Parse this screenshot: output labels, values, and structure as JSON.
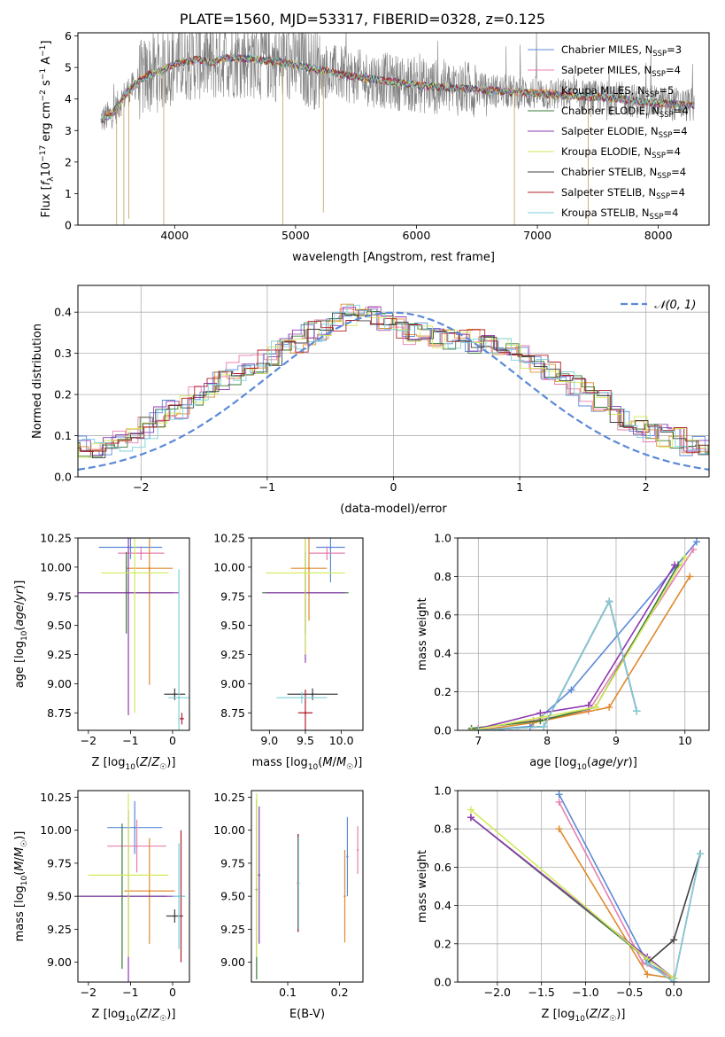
{
  "figure": {
    "title": "PLATE=1560, MJD=53317, FIBERID=0328, z=0.125"
  },
  "colors": {
    "Chabrier MILES": "#5b8ad8",
    "Salpeter MILES": "#e77fb0",
    "Kroupa MILES": "#e08a2e",
    "Chabrier ELODIE": "#3a7a3a",
    "Salpeter ELODIE": "#8e3ab0",
    "Kroupa ELODIE": "#d2ea5a",
    "Chabrier STELIB": "#404040",
    "Salpeter STELIB": "#b0202a",
    "Kroupa STELIB": "#7ad0dc",
    "observed": "#808080",
    "normal": "#5b8ad8"
  },
  "chart_data": [
    {
      "id": "spectrum",
      "type": "line",
      "xlabel": "wavelength [Angstrom, rest frame]",
      "ylabel": "Flux [f_λ 10^-17 erg cm^-2 s^-1 A^-1]",
      "xlim": [
        3200,
        8420
      ],
      "ylim": [
        0,
        6.1
      ],
      "xticks": [
        4000,
        5000,
        6000,
        7000,
        8000
      ],
      "yticks": [
        0,
        1,
        2,
        3,
        4,
        5,
        6
      ],
      "legend_position": "top-right",
      "legend": [
        "Chabrier MILES, N_SSP=3",
        "Salpeter MILES, N_SSP=4",
        "Kroupa MILES, N_SSP=5",
        "Chabrier ELODIE, N_SSP=4",
        "Salpeter ELODIE, N_SSP=4",
        "Kroupa ELODIE, N_SSP=4",
        "Chabrier STELIB, N_SSP=4",
        "Salpeter STELIB, N_SSP=4",
        "Kroupa STELIB, N_SSP=4"
      ],
      "model_continuum": {
        "x": [
          3390,
          3450,
          3500,
          3550,
          3600,
          3650,
          3700,
          3800,
          3900,
          4000,
          4100,
          4200,
          4300,
          4400,
          4500,
          4700,
          4900,
          5100,
          5300,
          5500,
          5700,
          5900,
          6100,
          6300,
          6500,
          6700,
          6900,
          7100,
          7300,
          7500,
          7700,
          7900,
          8100,
          8300
        ],
        "y": [
          3.35,
          3.45,
          3.6,
          3.9,
          4.2,
          4.35,
          4.55,
          4.8,
          4.9,
          5.1,
          5.2,
          5.25,
          5.15,
          5.3,
          5.3,
          5.25,
          5.15,
          5.0,
          4.85,
          4.7,
          4.6,
          4.5,
          4.4,
          4.35,
          4.3,
          4.25,
          4.2,
          4.15,
          4.1,
          4.05,
          4.0,
          3.9,
          3.85,
          3.8
        ]
      }
    },
    {
      "id": "residuals",
      "type": "line",
      "xlabel": "(data-model)/error",
      "ylabel": "Normed distribution",
      "xlim": [
        -2.5,
        2.5
      ],
      "ylim": [
        0,
        0.465
      ],
      "xticks": [
        -2,
        -1,
        0,
        1,
        2
      ],
      "yticks": [
        0.0,
        0.1,
        0.2,
        0.3,
        0.4
      ],
      "legend": [
        "𝒩(0, 1)"
      ],
      "grid": true,
      "histogram_bin_width": 0.1,
      "histogram_mean": [
        0.03,
        0.04,
        0.05,
        0.06,
        0.06,
        0.07,
        0.07,
        0.08,
        0.09,
        0.1,
        0.12,
        0.14,
        0.16,
        0.17,
        0.19,
        0.21,
        0.23,
        0.25,
        0.27,
        0.28,
        0.3,
        0.32,
        0.33,
        0.35,
        0.36,
        0.38,
        0.39,
        0.4,
        0.39,
        0.37,
        0.36,
        0.35,
        0.35,
        0.34,
        0.34,
        0.33,
        0.33,
        0.32,
        0.31,
        0.3,
        0.29,
        0.28,
        0.26,
        0.24,
        0.22,
        0.2,
        0.18,
        0.16,
        0.14,
        0.12,
        0.11,
        0.1,
        0.09,
        0.08,
        0.07,
        0.06,
        0.05,
        0.05,
        0.04,
        0.04
      ]
    },
    {
      "id": "age_vs_Z",
      "type": "scatter",
      "xlabel": "Z [log10(Z/Z☉)]",
      "ylabel": "age  [log10(age/yr)]",
      "xlim": [
        -2.25,
        0.4
      ],
      "ylim": [
        8.6,
        10.25
      ],
      "xticks": [
        -2,
        -1,
        0
      ],
      "yticks": [
        8.75,
        9.0,
        9.25,
        9.5,
        9.75,
        10.0,
        10.25
      ],
      "points": [
        {
          "model": "Chabrier MILES",
          "x": -1.0,
          "y": 10.17,
          "xerr": 0.75,
          "yerr": 0.1
        },
        {
          "model": "Salpeter MILES",
          "x": -0.75,
          "y": 10.12,
          "xerr": 0.55,
          "yerr": 0.06
        },
        {
          "model": "Kroupa MILES",
          "x": -0.55,
          "y": 9.99,
          "xerr": 0.55,
          "yerr": 1.0
        },
        {
          "model": "Chabrier ELODIE",
          "x": -1.1,
          "y": 9.78,
          "xerr": 1.1,
          "yerr": 0.35
        },
        {
          "model": "Salpeter ELODIE",
          "x": -1.05,
          "y": 9.78,
          "xerr": 1.2,
          "yerr": 1.05
        },
        {
          "model": "Kroupa ELODIE",
          "x": -0.9,
          "y": 9.95,
          "xerr": 0.8,
          "yerr": 1.2
        },
        {
          "model": "Chabrier STELIB",
          "x": 0.05,
          "y": 8.91,
          "xerr": 0.25,
          "yerr": 0.05
        },
        {
          "model": "Salpeter STELIB",
          "x": 0.22,
          "y": 8.7,
          "xerr": 0.05,
          "yerr": 0.05
        },
        {
          "model": "Kroupa STELIB",
          "x": 0.15,
          "y": 8.88,
          "xerr": 0.25,
          "yerr": 1.1
        }
      ]
    },
    {
      "id": "age_vs_mass",
      "type": "scatter",
      "xlabel": "mass [log10(M/M☉)]",
      "ylabel": "",
      "xlim": [
        8.75,
        10.3
      ],
      "ylim": [
        8.6,
        10.25
      ],
      "xticks": [
        9.0,
        9.5,
        10.0
      ],
      "yticks": [
        8.75,
        9.0,
        9.25,
        9.5,
        9.75,
        10.0,
        10.25
      ],
      "points": [
        {
          "model": "Chabrier MILES",
          "x": 9.85,
          "y": 10.17,
          "xerr": 0.2,
          "yerr": 0.3
        },
        {
          "model": "Salpeter MILES",
          "x": 9.8,
          "y": 10.12,
          "xerr": 0.25,
          "yerr": 0.06
        },
        {
          "model": "Kroupa MILES",
          "x": 9.55,
          "y": 9.99,
          "xerr": 0.25,
          "yerr": 0.45
        },
        {
          "model": "Chabrier ELODIE",
          "x": 9.5,
          "y": 9.78,
          "xerr": 0.6,
          "yerr": 0.35
        },
        {
          "model": "Salpeter ELODIE",
          "x": 9.5,
          "y": 9.78,
          "xerr": 0.55,
          "yerr": 0.6
        },
        {
          "model": "Kroupa ELODIE",
          "x": 9.5,
          "y": 9.95,
          "xerr": 0.55,
          "yerr": 0.7
        },
        {
          "model": "Chabrier STELIB",
          "x": 9.6,
          "y": 8.91,
          "xerr": 0.35,
          "yerr": 0.05
        },
        {
          "model": "Salpeter STELIB",
          "x": 9.5,
          "y": 8.75,
          "xerr": 0.1,
          "yerr": 0.2
        },
        {
          "model": "Kroupa STELIB",
          "x": 9.45,
          "y": 8.88,
          "xerr": 0.35,
          "yerr": 0.05
        }
      ]
    },
    {
      "id": "massweight_vs_age",
      "type": "line",
      "xlabel": "age  [log10(age/yr)]",
      "ylabel": "mass weight",
      "xlim": [
        6.7,
        10.35
      ],
      "ylim": [
        0,
        1.0
      ],
      "xticks": [
        7,
        8,
        9,
        10
      ],
      "yticks": [
        0.0,
        0.2,
        0.4,
        0.6,
        0.8,
        1.0
      ],
      "grid": true,
      "series": [
        {
          "model": "Chabrier MILES",
          "x": [
            7.0,
            7.75,
            8.35,
            10.17
          ],
          "y": [
            0.0,
            0.02,
            0.21,
            0.98
          ]
        },
        {
          "model": "Salpeter MILES",
          "x": [
            7.0,
            7.8,
            8.6,
            10.12
          ],
          "y": [
            0.01,
            0.05,
            0.1,
            0.94
          ]
        },
        {
          "model": "Kroupa MILES",
          "x": [
            7.0,
            7.8,
            8.9,
            10.07
          ],
          "y": [
            0.0,
            0.04,
            0.12,
            0.8
          ]
        },
        {
          "model": "Chabrier ELODIE",
          "x": [
            6.9,
            7.9,
            8.7,
            9.9
          ],
          "y": [
            0.01,
            0.05,
            0.12,
            0.86
          ]
        },
        {
          "model": "Salpeter ELODIE",
          "x": [
            6.9,
            7.9,
            8.6,
            9.85
          ],
          "y": [
            0.0,
            0.09,
            0.13,
            0.86
          ]
        },
        {
          "model": "Kroupa ELODIE",
          "x": [
            6.9,
            7.95,
            8.7,
            10.0
          ],
          "y": [
            0.0,
            0.07,
            0.12,
            0.9
          ]
        },
        {
          "model": "Chabrier STELIB",
          "x": [
            7.0,
            7.95,
            8.9,
            9.3
          ],
          "y": [
            0.0,
            0.02,
            0.67,
            0.1
          ]
        },
        {
          "model": "Salpeter STELIB",
          "x": [
            7.0,
            7.95,
            8.9,
            9.3
          ],
          "y": [
            0.0,
            0.02,
            0.67,
            0.1
          ]
        },
        {
          "model": "Kroupa STELIB",
          "x": [
            7.0,
            7.95,
            8.9,
            9.3
          ],
          "y": [
            0.0,
            0.02,
            0.67,
            0.1
          ]
        }
      ]
    },
    {
      "id": "mass_vs_Z",
      "type": "scatter",
      "xlabel": "Z [log10(Z/Z☉)]",
      "ylabel": "mass [log10(M/M☉)]",
      "xlim": [
        -2.25,
        0.4
      ],
      "ylim": [
        8.85,
        10.3
      ],
      "xticks": [
        -2,
        -1,
        0
      ],
      "yticks": [
        9.0,
        9.25,
        9.5,
        9.75,
        10.0,
        10.25
      ],
      "points": [
        {
          "model": "Chabrier MILES",
          "x": -0.9,
          "y": 10.02,
          "xerr": 0.65,
          "yerr": 0.2
        },
        {
          "model": "Salpeter MILES",
          "x": -0.85,
          "y": 9.88,
          "xerr": 0.7,
          "yerr": 0.2
        },
        {
          "model": "Kroupa MILES",
          "x": -0.55,
          "y": 9.54,
          "xerr": 0.6,
          "yerr": 0.4
        },
        {
          "model": "Chabrier ELODIE",
          "x": -1.2,
          "y": 9.5,
          "xerr": 1.05,
          "yerr": 0.55
        },
        {
          "model": "Salpeter ELODIE",
          "x": -1.05,
          "y": 9.5,
          "xerr": 1.15,
          "yerr": 0.65
        },
        {
          "model": "Kroupa ELODIE",
          "x": -1.05,
          "y": 9.66,
          "xerr": 0.95,
          "yerr": 0.62
        },
        {
          "model": "Chabrier STELIB",
          "x": 0.05,
          "y": 9.35,
          "xerr": 0.2,
          "yerr": 0.05
        },
        {
          "model": "Salpeter STELIB",
          "x": 0.2,
          "y": 9.5,
          "xerr": 0.05,
          "yerr": 0.5
        },
        {
          "model": "Kroupa STELIB",
          "x": 0.15,
          "y": 9.5,
          "xerr": 0.15,
          "yerr": 0.4
        }
      ]
    },
    {
      "id": "mass_vs_ebv",
      "type": "scatter",
      "xlabel": "E(B-V)",
      "ylabel": "",
      "xlim": [
        0.03,
        0.245
      ],
      "ylim": [
        8.85,
        10.3
      ],
      "xticks": [
        0.1,
        0.2
      ],
      "yticks": [
        9.0,
        9.25,
        9.5,
        9.75,
        10.0,
        10.25
      ],
      "points": [
        {
          "model": "Chabrier MILES",
          "x": 0.215,
          "y": 9.8,
          "xerr": 0,
          "yerr": 0.3
        },
        {
          "model": "Salpeter MILES",
          "x": 0.235,
          "y": 9.85,
          "xerr": 0,
          "yerr": 0.18
        },
        {
          "model": "Kroupa MILES",
          "x": 0.21,
          "y": 9.5,
          "xerr": 0,
          "yerr": 0.35
        },
        {
          "model": "Chabrier ELODIE",
          "x": 0.04,
          "y": 9.55,
          "xerr": 0,
          "yerr": 0.68
        },
        {
          "model": "Salpeter ELODIE",
          "x": 0.045,
          "y": 9.66,
          "xerr": 0,
          "yerr": 0.52
        },
        {
          "model": "Kroupa ELODIE",
          "x": 0.04,
          "y": 9.66,
          "xerr": 0,
          "yerr": 0.62
        },
        {
          "model": "Chabrier STELIB",
          "x": 0.12,
          "y": 9.6,
          "xerr": 0,
          "yerr": 0.37
        },
        {
          "model": "Salpeter STELIB",
          "x": 0.12,
          "y": 9.6,
          "xerr": 0,
          "yerr": 0.37
        },
        {
          "model": "Kroupa STELIB",
          "x": 0.121,
          "y": 9.6,
          "xerr": 0,
          "yerr": 0.35
        }
      ]
    },
    {
      "id": "massweight_vs_Z",
      "type": "line",
      "xlabel": "Z [log10(Z/Z☉)]",
      "ylabel": "mass weight",
      "xlim": [
        -2.45,
        0.4
      ],
      "ylim": [
        0,
        1.0
      ],
      "xticks": [
        -2.0,
        -1.5,
        -1.0,
        -0.5,
        0.0
      ],
      "grid": true,
      "yticks": [
        0.0,
        0.2,
        0.4,
        0.6,
        0.8,
        1.0
      ],
      "series": [
        {
          "model": "Chabrier MILES",
          "x": [
            -1.3,
            -0.3,
            0.0
          ],
          "y": [
            0.98,
            0.1,
            0.02
          ]
        },
        {
          "model": "Salpeter MILES",
          "x": [
            -1.3,
            -0.35,
            0.0
          ],
          "y": [
            0.94,
            0.1,
            0.02
          ]
        },
        {
          "model": "Kroupa MILES",
          "x": [
            -1.3,
            -0.3,
            0.0
          ],
          "y": [
            0.8,
            0.04,
            0.02
          ]
        },
        {
          "model": "Chabrier ELODIE",
          "x": [
            -2.3,
            -0.3,
            0.0
          ],
          "y": [
            0.86,
            0.12,
            0.02
          ]
        },
        {
          "model": "Salpeter ELODIE",
          "x": [
            -2.3,
            -0.3,
            0.0
          ],
          "y": [
            0.86,
            0.13,
            0.02
          ]
        },
        {
          "model": "Kroupa ELODIE",
          "x": [
            -2.3,
            -0.3,
            0.0
          ],
          "y": [
            0.9,
            0.12,
            0.02
          ]
        },
        {
          "model": "Chabrier STELIB",
          "x": [
            -0.3,
            0.0,
            0.3
          ],
          "y": [
            0.1,
            0.22,
            0.67
          ]
        },
        {
          "model": "Salpeter STELIB",
          "x": [
            -0.3,
            0.0,
            0.3
          ],
          "y": [
            0.1,
            0.0,
            0.67
          ]
        },
        {
          "model": "Kroupa STELIB",
          "x": [
            -0.3,
            0.0,
            0.3
          ],
          "y": [
            0.1,
            0.0,
            0.67
          ]
        }
      ]
    }
  ]
}
